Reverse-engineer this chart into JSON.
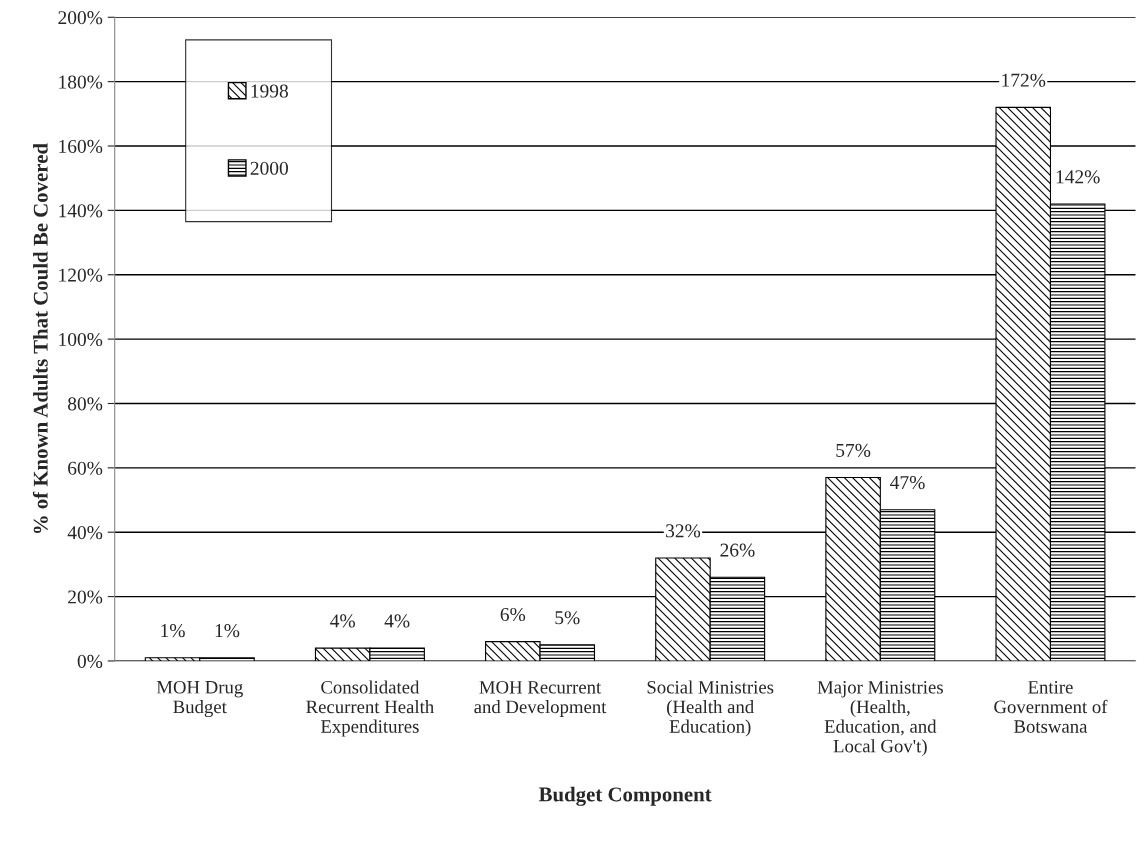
{
  "chart_data": {
    "type": "bar",
    "xlabel": "Budget Component",
    "ylabel": "% of Known Adults That Could Be Covered",
    "categories": [
      "MOH Drug\nBudget",
      "Consolidated\nRecurrent Health\nExpenditures",
      "MOH Recurrent\nand Development",
      "Social Ministries\n(Health and\nEducation)",
      "Major Ministries\n(Health,\nEducation, and\nLocal Gov't)",
      "Entire\nGovernment of\nBotswana"
    ],
    "series": [
      {
        "name": "1998",
        "color": "#000000",
        "values": [
          1,
          4,
          6,
          32,
          57,
          172
        ],
        "value_labels": [
          "1%",
          "4%",
          "6%",
          "32%",
          "57%",
          "172%"
        ]
      },
      {
        "name": "2000",
        "color": "#000000",
        "values": [
          1,
          4,
          5,
          26,
          47,
          142
        ],
        "value_labels": [
          "1%",
          "4%",
          "5%",
          "26%",
          "47%",
          "142%"
        ]
      }
    ],
    "ylim": [
      0,
      200
    ],
    "yticks": [
      {
        "value": 0,
        "label": "0%"
      },
      {
        "value": 20,
        "label": "20%"
      },
      {
        "value": 40,
        "label": "40%"
      },
      {
        "value": 60,
        "label": "60%"
      },
      {
        "value": 80,
        "label": "80%"
      },
      {
        "value": 100,
        "label": "100%"
      },
      {
        "value": 120,
        "label": "120%"
      },
      {
        "value": 140,
        "label": "140%"
      },
      {
        "value": 160,
        "label": "160%"
      },
      {
        "value": 180,
        "label": "180%"
      },
      {
        "value": 200,
        "label": "200%"
      }
    ],
    "grid": "y",
    "legend": "top left"
  }
}
